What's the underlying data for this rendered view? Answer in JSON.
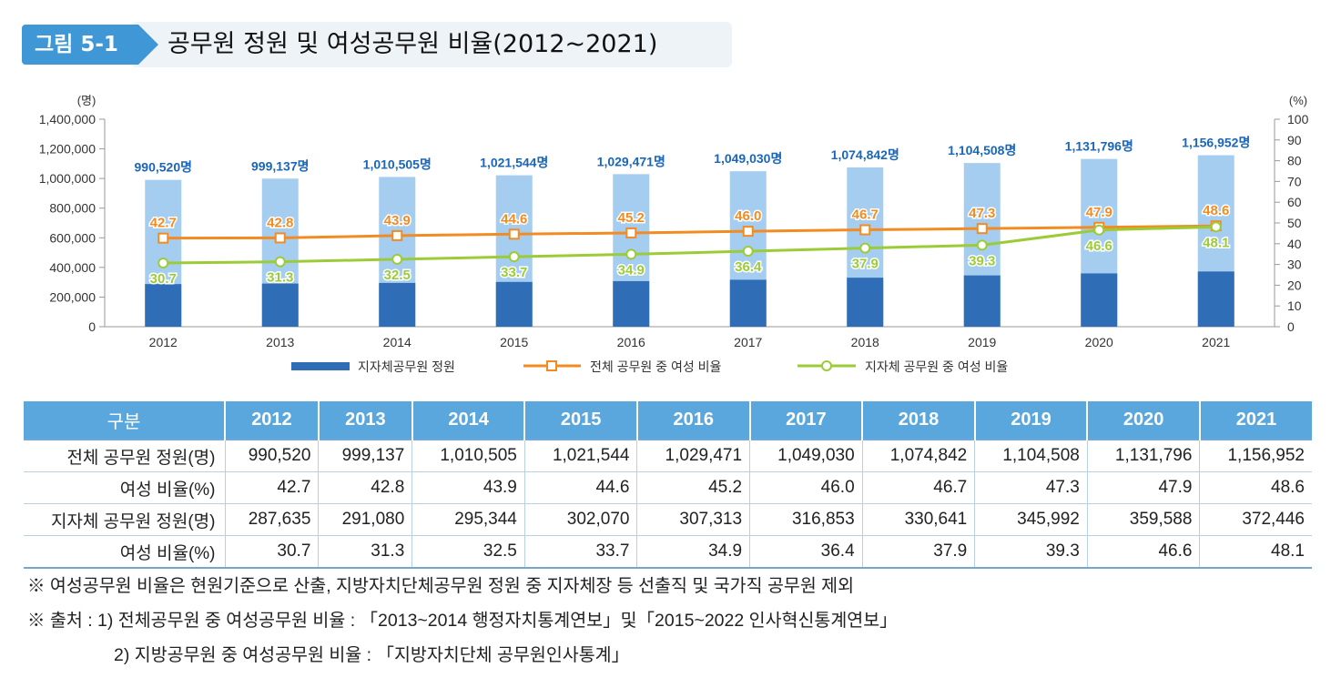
{
  "header": {
    "badge": "그림 5-1",
    "title": "공무원 정원 및 여성공무원 비율(2012~2021)"
  },
  "colors": {
    "bar_dark": "#2f6eb7",
    "bar_light": "#a5cdf0",
    "total_line": "#f28c22",
    "local_line": "#9ccb38",
    "total_label": "#1a66b8"
  },
  "chart_data": {
    "type": "bar+line",
    "categories": [
      "2012",
      "2013",
      "2014",
      "2015",
      "2016",
      "2017",
      "2018",
      "2019",
      "2020",
      "2021"
    ],
    "left_axis": {
      "unit": "(명)",
      "ylim": [
        0,
        1400000
      ],
      "ticks": [
        "0",
        "200,000",
        "400,000",
        "600,000",
        "800,000",
        "1,000,000",
        "1,200,000",
        "1,400,000"
      ]
    },
    "right_axis": {
      "unit": "(%)",
      "ylim": [
        0,
        100
      ],
      "ticks": [
        "0",
        "10",
        "20",
        "30",
        "40",
        "50",
        "60",
        "70",
        "80",
        "90",
        "100"
      ]
    },
    "total_staff": [
      990520,
      999137,
      1010505,
      1021544,
      1029471,
      1049030,
      1074842,
      1104508,
      1131796,
      1156952
    ],
    "total_staff_labels": [
      "990,520명",
      "999,137명",
      "1,010,505명",
      "1,021,544명",
      "1,029,471명",
      "1,049,030명",
      "1,074,842명",
      "1,104,508명",
      "1,131,796명",
      "1,156,952명"
    ],
    "series": [
      {
        "name": "지자체공무원 정원",
        "kind": "bar",
        "values": [
          287635,
          291080,
          295344,
          302070,
          307313,
          316853,
          330641,
          345992,
          359588,
          372446
        ]
      },
      {
        "name": "전체 공무원 중 여성 비율",
        "kind": "line",
        "axis": "right",
        "marker": "square",
        "values": [
          42.7,
          42.8,
          43.9,
          44.6,
          45.2,
          46.0,
          46.7,
          47.3,
          47.9,
          48.6
        ],
        "labels": [
          "42.7",
          "42.8",
          "43.9",
          "44.6",
          "45.2",
          "46.0",
          "46.7",
          "47.3",
          "47.9",
          "48.6"
        ]
      },
      {
        "name": "지자체 공무원 중 여성 비율",
        "kind": "line",
        "axis": "right",
        "marker": "circle",
        "values": [
          30.7,
          31.3,
          32.5,
          33.7,
          34.9,
          36.4,
          37.9,
          39.3,
          46.6,
          48.1
        ],
        "labels": [
          "30.7",
          "31.3",
          "32.5",
          "33.7",
          "34.9",
          "36.4",
          "37.9",
          "39.3",
          "46.6",
          "48.1"
        ]
      }
    ],
    "legend": [
      "지자체공무원 정원",
      "전체 공무원 중 여성 비율",
      "지자체 공무원 중 여성 비율"
    ]
  },
  "table": {
    "headers": [
      "구분",
      "2012",
      "2013",
      "2014",
      "2015",
      "2016",
      "2017",
      "2018",
      "2019",
      "2020",
      "2021"
    ],
    "rows": [
      [
        "전체 공무원 정원(명)",
        "990,520",
        "999,137",
        "1,010,505",
        "1,021,544",
        "1,029,471",
        "1,049,030",
        "1,074,842",
        "1,104,508",
        "1,131,796",
        "1,156,952"
      ],
      [
        "여성 비율(%)",
        "42.7",
        "42.8",
        "43.9",
        "44.6",
        "45.2",
        "46.0",
        "46.7",
        "47.3",
        "47.9",
        "48.6"
      ],
      [
        "지자체 공무원 정원(명)",
        "287,635",
        "291,080",
        "295,344",
        "302,070",
        "307,313",
        "316,853",
        "330,641",
        "345,992",
        "359,588",
        "372,446"
      ],
      [
        "여성 비율(%)",
        "30.7",
        "31.3",
        "32.5",
        "33.7",
        "34.9",
        "36.4",
        "37.9",
        "39.3",
        "46.6",
        "48.1"
      ]
    ]
  },
  "notes": [
    "※ 여성공무원 비율은 현원기준으로 산출, 지방자치단체공무원 정원 중 지자체장 등 선출직 및 국가직 공무원 제외",
    "※ 출처 : 1) 전체공무원 중 여성공무원 비율 : 「2013~2014 행정자치통계연보」및「2015~2022 인사혁신통계연보」",
    "2) 지방공무원 중 여성공무원 비율 : 「지방자치단체 공무원인사통계」"
  ]
}
